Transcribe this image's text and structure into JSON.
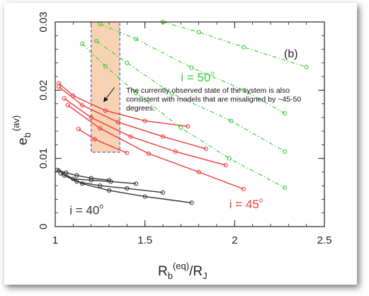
{
  "chart_data": {
    "type": "line",
    "panel_label": "(b)",
    "xlabel": {
      "main": "R",
      "sub1": "b",
      "sup": "(eq)",
      "slash": "/R",
      "sub2": "J"
    },
    "ylabel": {
      "main": "e",
      "sub": "b",
      "sup": "(av)"
    },
    "xlim": [
      1,
      2.5
    ],
    "ylim": [
      0,
      0.03
    ],
    "x_ticks": [
      {
        "v": 1,
        "label": "1"
      },
      {
        "v": 1.5,
        "label": "1.5"
      },
      {
        "v": 2,
        "label": "2"
      },
      {
        "v": 2.5,
        "label": "2.5"
      }
    ],
    "y_ticks": [
      {
        "v": 0,
        "label": "0"
      },
      {
        "v": 0.01,
        "label": "0.01"
      },
      {
        "v": 0.02,
        "label": "0.02"
      },
      {
        "v": 0.03,
        "label": "0.03"
      }
    ],
    "grid": false,
    "colors": {
      "i40": "#333333",
      "i45": "#ee3b3b",
      "i50": "#33cc33",
      "box_fill": "#f7d3b3",
      "box_edge": "#3333bb"
    },
    "series": [
      {
        "group": "i40",
        "style": "solid",
        "points": [
          [
            1.02,
            0.0082
          ],
          [
            1.1,
            0.007
          ],
          [
            1.2,
            0.0068
          ],
          [
            1.31,
            0.0066
          ],
          [
            1.45,
            0.0063
          ]
        ]
      },
      {
        "group": "i40",
        "style": "solid",
        "points": [
          [
            1.03,
            0.0078
          ],
          [
            1.12,
            0.0066
          ],
          [
            1.25,
            0.006
          ],
          [
            1.4,
            0.0056
          ],
          [
            1.6,
            0.005
          ]
        ]
      },
      {
        "group": "i40",
        "style": "solid",
        "points": [
          [
            1.05,
            0.0075
          ],
          [
            1.15,
            0.0063
          ],
          [
            1.3,
            0.0053
          ],
          [
            1.5,
            0.0044
          ],
          [
            1.76,
            0.0035
          ]
        ]
      },
      {
        "group": "i40",
        "style": "solid",
        "points": [
          [
            1.01,
            0.0083
          ],
          [
            1.06,
            0.0079
          ],
          [
            1.12,
            0.0075
          ],
          [
            1.2,
            0.0071
          ],
          [
            1.3,
            0.0068
          ]
        ]
      },
      {
        "group": "i45",
        "style": "solid",
        "points": [
          [
            1.02,
            0.021
          ],
          [
            1.1,
            0.0192
          ],
          [
            1.28,
            0.017
          ],
          [
            1.5,
            0.0155
          ],
          [
            1.74,
            0.0147
          ]
        ]
      },
      {
        "group": "i45",
        "style": "solid",
        "points": [
          [
            1.02,
            0.0205
          ],
          [
            1.15,
            0.0178
          ],
          [
            1.35,
            0.0153
          ],
          [
            1.6,
            0.0132
          ],
          [
            1.84,
            0.0114
          ]
        ]
      },
      {
        "group": "i45",
        "style": "solid",
        "points": [
          [
            1.05,
            0.0188
          ],
          [
            1.2,
            0.016
          ],
          [
            1.42,
            0.0132
          ],
          [
            1.67,
            0.011
          ],
          [
            1.95,
            0.009
          ]
        ]
      },
      {
        "group": "i45",
        "style": "solid",
        "points": [
          [
            1.07,
            0.0178
          ],
          [
            1.25,
            0.0144
          ],
          [
            1.52,
            0.0107
          ],
          [
            1.8,
            0.008
          ],
          [
            2.05,
            0.0055
          ]
        ]
      },
      {
        "group": "i45",
        "style": "solid",
        "points": [
          [
            1.13,
            0.0143
          ],
          [
            1.22,
            0.0128
          ],
          [
            1.4,
            0.0108
          ]
        ]
      },
      {
        "group": "i50",
        "style": "dashdot",
        "points": [
          [
            1.15,
            0.0268
          ],
          [
            1.28,
            0.0235
          ],
          [
            1.45,
            0.0196
          ],
          [
            1.7,
            0.0145
          ],
          [
            1.97,
            0.01
          ],
          [
            2.28,
            0.0057
          ]
        ]
      },
      {
        "group": "i50",
        "style": "dashdot",
        "points": [
          [
            1.23,
            0.0272
          ],
          [
            1.4,
            0.024
          ],
          [
            1.65,
            0.0195
          ],
          [
            1.98,
            0.0155
          ],
          [
            2.28,
            0.011
          ]
        ]
      },
      {
        "group": "i50",
        "style": "dashdot",
        "points": [
          [
            1.25,
            0.0297
          ],
          [
            1.45,
            0.0275
          ],
          [
            1.76,
            0.0233
          ],
          [
            2.05,
            0.02
          ],
          [
            2.28,
            0.0166
          ]
        ]
      },
      {
        "group": "i50",
        "style": "dashdot",
        "points": [
          [
            1.6,
            0.03
          ],
          [
            1.8,
            0.0285
          ],
          [
            2.05,
            0.0263
          ],
          [
            2.4,
            0.0234
          ]
        ]
      }
    ],
    "labels": [
      {
        "text_main": "i = 40",
        "deg": "o",
        "group": "i40",
        "x": 1.08,
        "y": 0.0018
      },
      {
        "text_main": "i = 45",
        "deg": "o",
        "group": "i45",
        "x": 1.97,
        "y": 0.0027
      },
      {
        "text_main": "i = 50",
        "deg": "o",
        "group": "i50",
        "x": 1.7,
        "y": 0.0213
      }
    ],
    "highlight_box": {
      "x0": 1.2,
      "x1": 1.36,
      "y0": 0.0109,
      "y1": 0.03
    },
    "annotation": {
      "lines": [
        "The currently observed state of the system is also",
        "consistent with models that are misaligned by ~45-50",
        "degrees."
      ],
      "arrow_from": [
        1.33,
        0.0204
      ],
      "arrow_to": [
        1.27,
        0.0183
      ]
    }
  }
}
